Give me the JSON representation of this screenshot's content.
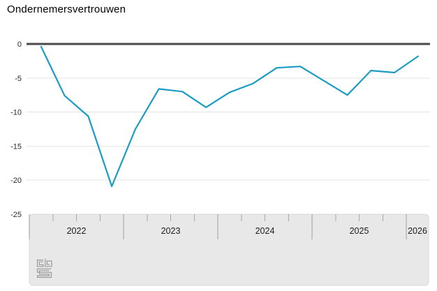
{
  "title": "Ondernemersvertrouwen",
  "y_axis": {
    "labels": [
      "0",
      "-5",
      "-10",
      "-15",
      "-20",
      "-25"
    ]
  },
  "x_axis": {
    "year_labels": [
      "2022",
      "2023",
      "2024",
      "2025",
      "2026"
    ]
  },
  "icons": {
    "footer_logo": "cbs-logo"
  },
  "colors": {
    "line": "#1a9cc4",
    "zero_line": "#4a4a4a",
    "grid": "#e3e3e3",
    "band_fill": "#e8e8e8",
    "band_border": "#d9d9d9",
    "tick": "#9e9e9e",
    "minor_tick": "#a8a8a8",
    "axis_text": "#2b2b2b",
    "year_text": "#1c1c1c",
    "logo": "#9a9a9a"
  },
  "chart_data": {
    "type": "line",
    "title": "Ondernemersvertrouwen",
    "x": [
      "2022-Q1",
      "2022-Q2",
      "2022-Q3",
      "2022-Q4",
      "2023-Q1",
      "2023-Q2",
      "2023-Q3",
      "2023-Q4",
      "2024-Q1",
      "2024-Q2",
      "2024-Q3",
      "2024-Q4",
      "2025-Q1",
      "2025-Q2",
      "2025-Q3",
      "2025-Q4",
      "2026-Q1"
    ],
    "values": [
      -0.4,
      -7.6,
      -10.6,
      -20.9,
      -12.5,
      -6.6,
      -7.0,
      -9.3,
      -7.1,
      -5.8,
      -3.5,
      -3.3,
      -5.4,
      -7.5,
      -3.9,
      -4.2,
      -1.8
    ],
    "xlabel": "",
    "ylabel": "",
    "ylim": [
      -25,
      0
    ],
    "yticks": [
      0,
      -5,
      -10,
      -15,
      -20,
      -25
    ],
    "year_labels": [
      "2022",
      "2023",
      "2024",
      "2025",
      "2026"
    ],
    "grid": true,
    "legend_position": "none",
    "line_color": "#1a9cc4"
  }
}
